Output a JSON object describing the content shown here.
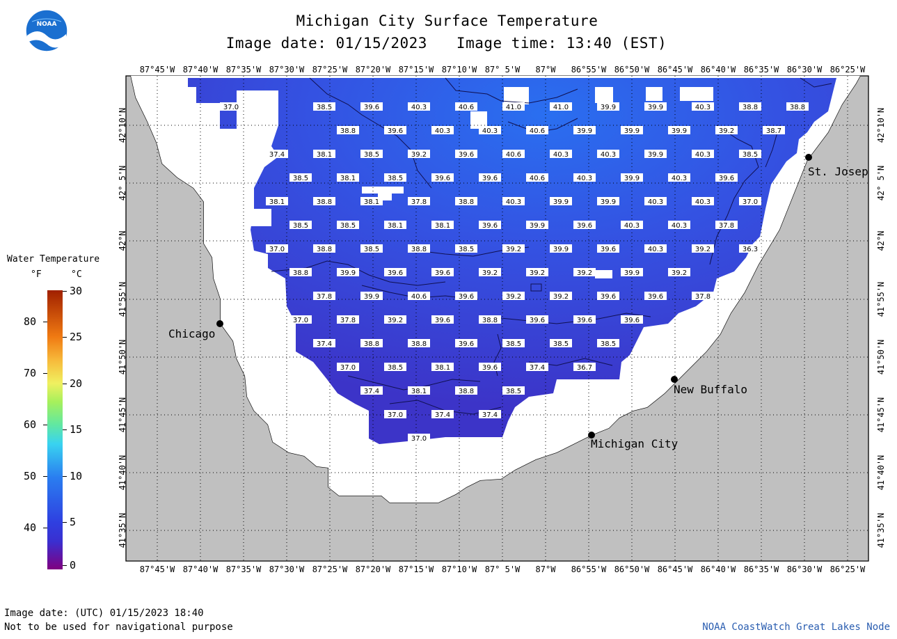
{
  "header": {
    "title": "Michigan City Surface Temperature",
    "date_label": "Image date: 01/15/2023",
    "time_label": "Image time: 13:40 (EST)"
  },
  "logo": {
    "text": "NOAA",
    "icon": "noaa-logo"
  },
  "legend": {
    "title": "Water Temperature",
    "unit_f": "°F",
    "unit_c": "°C",
    "ticks_f": [
      "80",
      "70",
      "60",
      "50",
      "40"
    ],
    "ticks_c": [
      "30",
      "25",
      "20",
      "15",
      "10",
      "5",
      "0"
    ]
  },
  "axes": {
    "lon_labels": [
      "87°45'W",
      "87°40'W",
      "87°35'W",
      "87°30'W",
      "87°25'W",
      "87°20'W",
      "87°15'W",
      "87°10'W",
      "87° 5'W",
      "87°W",
      "86°55'W",
      "86°50'W",
      "86°45'W",
      "86°40'W",
      "86°35'W",
      "86°30'W",
      "86°25'W"
    ],
    "lat_labels": [
      "42°10'N",
      "42° 5'N",
      "42°N",
      "41°55'N",
      "41°50'N",
      "41°45'N",
      "41°40'N",
      "41°35'N"
    ]
  },
  "cities": [
    {
      "name": "Chicago"
    },
    {
      "name": "St. Josep"
    },
    {
      "name": "New Buffalo"
    },
    {
      "name": "Michigan City"
    }
  ],
  "grid_values": [
    [
      "37.0",
      "38.5",
      "39.6",
      "40.3",
      "40.6",
      "41.0",
      "41.0",
      "39.9",
      "39.9",
      "40.3",
      "38.8",
      "38.8"
    ],
    [
      "38.8",
      "39.6",
      "40.3",
      "40.3",
      "40.6",
      "39.9",
      "39.9",
      "39.9",
      "39.2",
      "38.7"
    ],
    [
      "37.4",
      "38.1",
      "38.5",
      "39.2",
      "39.6",
      "40.6",
      "40.3",
      "40.3",
      "39.9",
      "40.3",
      "38.5"
    ],
    [
      "38.5",
      "38.1",
      "38.5",
      "39.6",
      "39.6",
      "40.6",
      "40.3",
      "39.9",
      "40.3",
      "39.6"
    ],
    [
      "38.1",
      "38.8",
      "38.1",
      "37.8",
      "38.8",
      "40.3",
      "39.9",
      "39.9",
      "40.3",
      "40.3",
      "37.0"
    ],
    [
      "38.5",
      "38.5",
      "38.1",
      "38.1",
      "39.6",
      "39.9",
      "39.6",
      "40.3",
      "40.3",
      "37.8"
    ],
    [
      "37.0",
      "38.8",
      "38.5",
      "38.8",
      "38.5",
      "39.2",
      "39.9",
      "39.6",
      "40.3",
      "39.2",
      "36.3"
    ],
    [
      "38.8",
      "39.9",
      "39.6",
      "39.6",
      "39.2",
      "39.2",
      "39.2",
      "39.9",
      "39.2"
    ],
    [
      "37.8",
      "39.9",
      "40.6",
      "39.6",
      "39.2",
      "39.2",
      "39.6",
      "39.6",
      "37.8"
    ],
    [
      "37.0",
      "37.8",
      "39.2",
      "39.6",
      "38.8",
      "39.6",
      "39.6",
      "39.6"
    ],
    [
      "37.4",
      "38.8",
      "38.8",
      "39.6",
      "38.5",
      "38.5",
      "38.5"
    ],
    [
      "37.0",
      "38.5",
      "38.1",
      "39.6",
      "37.4",
      "36.7"
    ],
    [
      "37.4",
      "38.1",
      "38.8",
      "38.5"
    ],
    [
      "37.0",
      "37.4",
      "37.4"
    ],
    [
      "37.0"
    ]
  ],
  "footer": {
    "utc_label": "Image date: (UTC) 01/15/2023  18:40",
    "disclaimer": "Not to be used for navigational purpose",
    "credit": "NOAA CoastWatch Great Lakes Node"
  },
  "colors": {
    "land": "#c0c0c0",
    "water": "#3a44d8",
    "water_warm": "#2f6fe8"
  }
}
